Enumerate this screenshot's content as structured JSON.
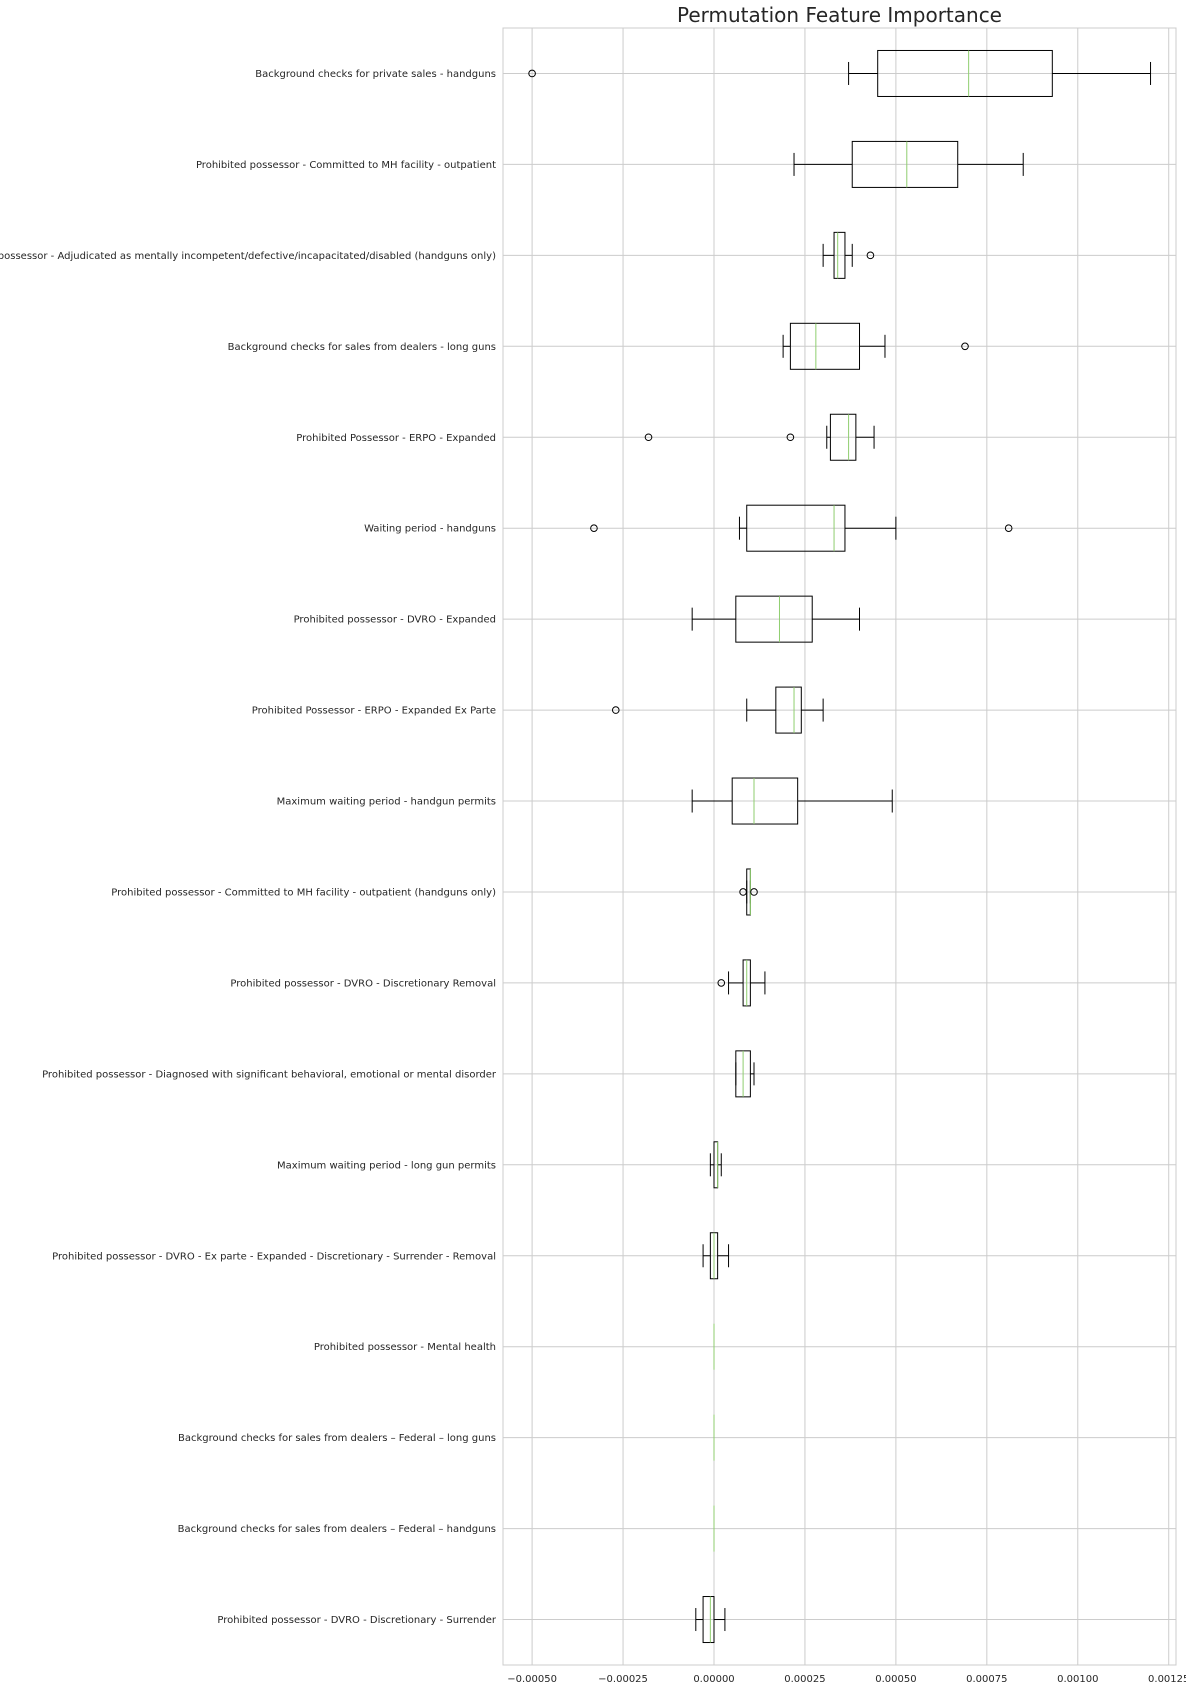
{
  "chart_data": {
    "type": "boxplot",
    "orientation": "horizontal",
    "title": "Permutation Feature Importance",
    "xlabel": "",
    "ylabel": "",
    "xlim": [
      -0.00058,
      0.00127
    ],
    "xticks": [
      -0.0005,
      -0.00025,
      0.0,
      0.00025,
      0.0005,
      0.00075,
      0.001,
      0.00125
    ],
    "xtick_labels": [
      "−0.00050",
      "−0.00025",
      "0.00000",
      "0.00025",
      "0.00050",
      "0.00075",
      "0.00100",
      "0.00125"
    ],
    "grid": true,
    "colors": {
      "box_edge": "#000000",
      "median": "#8fce6f",
      "grid": "#cccccc",
      "spine": "#cccccc",
      "text": "#262626"
    },
    "features": [
      {
        "label": "Background checks for private sales - handguns",
        "whisker_low": 0.00037,
        "q1": 0.00045,
        "median": 0.0007,
        "q3": 0.00093,
        "whisker_high": 0.0012,
        "fliers": [
          -0.0005
        ]
      },
      {
        "label": "Prohibited possessor - Committed to MH facility - outpatient",
        "whisker_low": 0.00022,
        "q1": 0.00038,
        "median": 0.00053,
        "q3": 0.00067,
        "whisker_high": 0.00085,
        "fliers": []
      },
      {
        "label": "Prohibited possessor - Adjudicated as mentally incompetent/defective/incapacitated/disabled (handguns only)",
        "whisker_low": 0.0003,
        "q1": 0.00033,
        "median": 0.00034,
        "q3": 0.00036,
        "whisker_high": 0.00038,
        "fliers": [
          0.00043
        ]
      },
      {
        "label": "Background checks for sales from dealers - long guns",
        "whisker_low": 0.00019,
        "q1": 0.00021,
        "median": 0.00028,
        "q3": 0.0004,
        "whisker_high": 0.00047,
        "fliers": [
          0.00069
        ]
      },
      {
        "label": "Prohibited Possessor - ERPO - Expanded",
        "whisker_low": 0.00031,
        "q1": 0.00032,
        "median": 0.00037,
        "q3": 0.00039,
        "whisker_high": 0.00044,
        "fliers": [
          -0.00018,
          0.00021
        ]
      },
      {
        "label": "Waiting period - handguns",
        "whisker_low": 7e-05,
        "q1": 9e-05,
        "median": 0.00033,
        "q3": 0.00036,
        "whisker_high": 0.0005,
        "fliers": [
          -0.00033,
          0.00081
        ]
      },
      {
        "label": "Prohibited possessor - DVRO - Expanded",
        "whisker_low": -6e-05,
        "q1": 6e-05,
        "median": 0.00018,
        "q3": 0.00027,
        "whisker_high": 0.0004,
        "fliers": []
      },
      {
        "label": "Prohibited Possessor - ERPO - Expanded Ex Parte",
        "whisker_low": 9e-05,
        "q1": 0.00017,
        "median": 0.00022,
        "q3": 0.00024,
        "whisker_high": 0.0003,
        "fliers": [
          -0.00027
        ]
      },
      {
        "label": "Maximum waiting period - handgun permits",
        "whisker_low": -6e-05,
        "q1": 5e-05,
        "median": 0.00011,
        "q3": 0.00023,
        "whisker_high": 0.00049,
        "fliers": []
      },
      {
        "label": "Prohibited possessor - Committed to MH facility - outpatient (handguns only)",
        "whisker_low": 9e-05,
        "q1": 9e-05,
        "median": 0.0001,
        "q3": 0.0001,
        "whisker_high": 0.0001,
        "fliers": [
          8e-05,
          0.00011
        ]
      },
      {
        "label": "Prohibited possessor - DVRO - Discretionary Removal",
        "whisker_low": 4e-05,
        "q1": 8e-05,
        "median": 9e-05,
        "q3": 0.0001,
        "whisker_high": 0.00014,
        "fliers": [
          2e-05
        ]
      },
      {
        "label": "Prohibited possessor - Diagnosed with significant behavioral, emotional or mental disorder",
        "whisker_low": 6e-05,
        "q1": 6e-05,
        "median": 8e-05,
        "q3": 0.0001,
        "whisker_high": 0.00011,
        "fliers": []
      },
      {
        "label": "Maximum waiting period - long gun permits",
        "whisker_low": -1e-05,
        "q1": 0.0,
        "median": 1e-05,
        "q3": 1e-05,
        "whisker_high": 2e-05,
        "fliers": []
      },
      {
        "label": "Prohibited possessor - DVRO - Ex parte - Expanded - Discretionary - Surrender - Removal",
        "whisker_low": -3e-05,
        "q1": -1e-05,
        "median": 0.0,
        "q3": 1e-05,
        "whisker_high": 4e-05,
        "fliers": []
      },
      {
        "label": "Prohibited possessor - Mental health",
        "whisker_low": 0.0,
        "q1": 0.0,
        "median": 0.0,
        "q3": 0.0,
        "whisker_high": 0.0,
        "fliers": []
      },
      {
        "label": "Background checks for sales from dealers – Federal – long guns",
        "whisker_low": 0.0,
        "q1": 0.0,
        "median": 0.0,
        "q3": 0.0,
        "whisker_high": 0.0,
        "fliers": []
      },
      {
        "label": "Background checks for sales from dealers – Federal – handguns",
        "whisker_low": 0.0,
        "q1": 0.0,
        "median": 0.0,
        "q3": 0.0,
        "whisker_high": 0.0,
        "fliers": []
      },
      {
        "label": "Prohibited possessor - DVRO - Discretionary - Surrender",
        "whisker_low": -5e-05,
        "q1": -3e-05,
        "median": -1e-05,
        "q3": 0.0,
        "whisker_high": 3e-05,
        "fliers": []
      }
    ]
  }
}
